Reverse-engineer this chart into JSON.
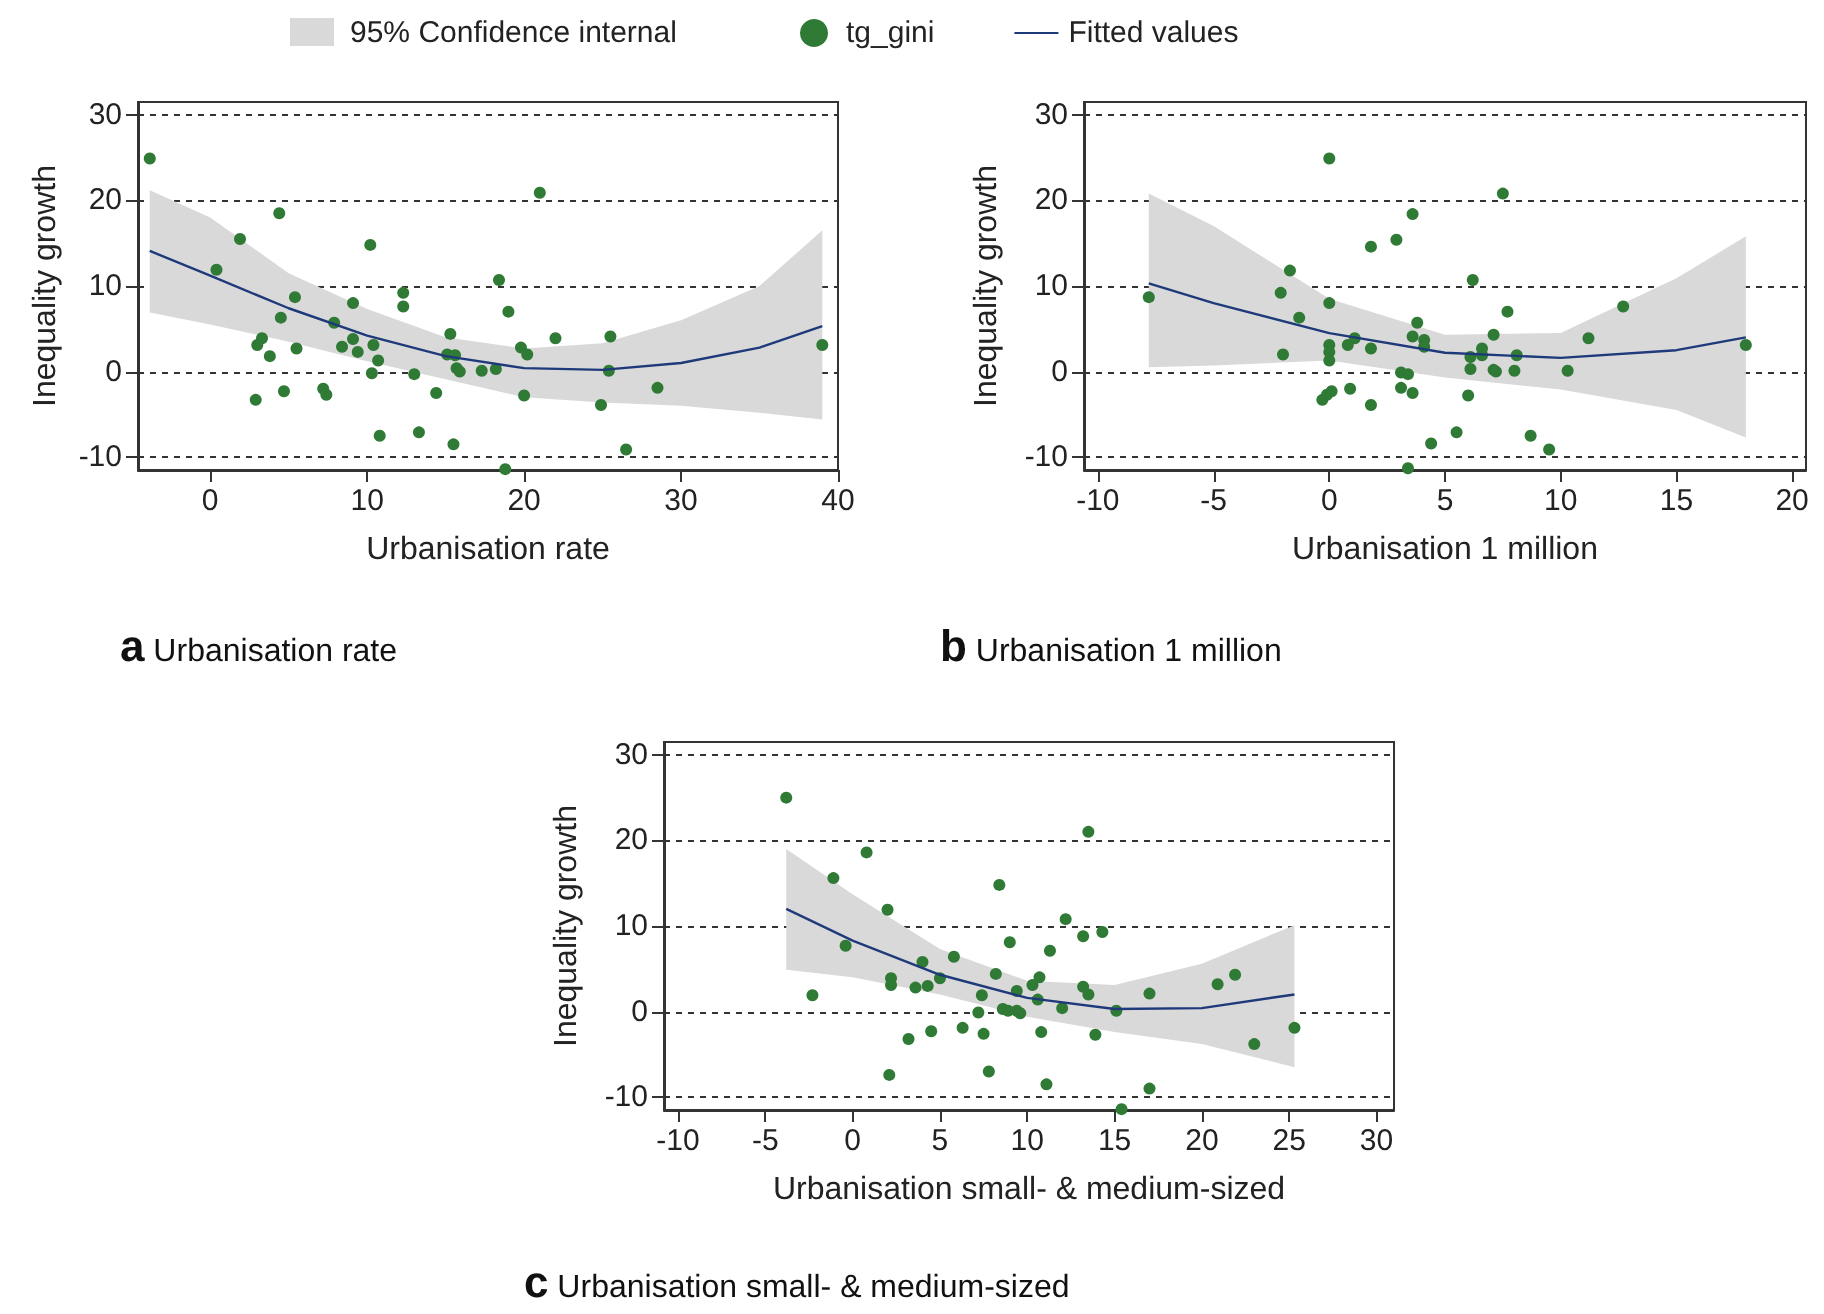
{
  "chart_data": [
    {
      "type": "scatter",
      "xlabel": "Urbanisation rate",
      "ylabel": "Inequality growth",
      "annotations": [
        "95% Confidence internal",
        "a Urbanisation rate"
      ],
      "xlim": [
        -4.6,
        40
      ],
      "ylim": [
        -11.5,
        31.5
      ],
      "xticks": [
        0,
        10,
        20,
        30,
        40
      ],
      "yticks": [
        -10,
        0,
        10,
        20,
        30
      ],
      "grid": "y",
      "legend": "top",
      "series": [
        {
          "type": "scatter",
          "name": "tg_gini",
          "color": "#2f7a35",
          "marker": "circle",
          "x": [
            -3.85,
            0.4,
            1.9,
            4.4,
            5.4,
            4.5,
            3.3,
            3.0,
            3.8,
            5.5,
            2.9,
            4.7,
            7.2,
            7.4,
            7.9,
            8.4,
            9.1,
            9.1,
            9.4,
            10.2,
            10.4,
            10.7,
            10.3,
            10.8,
            12.3,
            12.3,
            13.0,
            13.3,
            14.4,
            15.3,
            15.1,
            15.6,
            15.7,
            15.9,
            15.5,
            17.3,
            18.2,
            18.4,
            19.0,
            18.8,
            19.8,
            20.2,
            20.0,
            21.0,
            22.0,
            25.5,
            25.4,
            24.9,
            26.5,
            28.5,
            39.0
          ],
          "values": [
            24.9,
            11.9,
            15.5,
            18.5,
            8.7,
            6.3,
            3.9,
            3.1,
            1.8,
            2.7,
            -3.3,
            -2.3,
            -2.0,
            -2.7,
            5.7,
            2.9,
            8.0,
            3.8,
            2.3,
            14.8,
            3.1,
            1.3,
            -0.2,
            -7.5,
            9.2,
            7.6,
            -0.3,
            -7.1,
            -2.5,
            4.4,
            2.0,
            1.9,
            0.4,
            0,
            -8.5,
            0.1,
            0.3,
            10.7,
            7.0,
            -11.4,
            2.8,
            2.0,
            -2.8,
            20.9,
            3.9,
            4.1,
            0.1,
            -3.9,
            -9.1,
            -1.9,
            3.1
          ]
        },
        {
          "type": "line",
          "name": "Fitted values",
          "color": "#1f3a7a",
          "x": [
            -3.85,
            0,
            5,
            10,
            15,
            20,
            25,
            30,
            35,
            39
          ],
          "values": [
            14.1,
            11.2,
            7.4,
            4.2,
            1.8,
            0.4,
            0.2,
            1.0,
            2.8,
            5.3
          ],
          "lower": [
            6.9,
            5.5,
            3.5,
            1.2,
            -0.9,
            -3.0,
            -3.6,
            -4.0,
            -4.8,
            -5.6
          ],
          "upper": [
            21.2,
            18.0,
            11.5,
            7.3,
            4.0,
            2.7,
            3.3,
            6.0,
            10,
            16.5
          ]
        }
      ]
    },
    {
      "type": "scatter",
      "xlabel": "Urbanisation 1 million",
      "ylabel": "Inequality growth",
      "annotations": [
        "b Urbanisation 1 million"
      ],
      "xlim": [
        -10.6,
        20.6
      ],
      "ylim": [
        -11.5,
        31.5
      ],
      "xticks": [
        -10,
        -5,
        0,
        5,
        10,
        15,
        20
      ],
      "yticks": [
        -10,
        0,
        10,
        20,
        30
      ],
      "grid": "y",
      "series": [
        {
          "type": "scatter",
          "color": "#2f7a35",
          "marker": "circle",
          "x": [
            -7.8,
            -2.1,
            -1.7,
            -1.3,
            -2.0,
            0,
            0,
            0,
            0,
            0,
            -0.3,
            -0.1,
            0.1,
            0.8,
            1.1,
            0.9,
            1.8,
            1.8,
            1.8,
            2.9,
            3.6,
            3.8,
            3.6,
            4.1,
            4.1,
            3.1,
            3.4,
            3.1,
            3.6,
            3.4,
            4.4,
            5.5,
            6.0,
            6.1,
            6.1,
            6.2,
            6.6,
            6.6,
            7.1,
            7.1,
            7.2,
            7.5,
            7.7,
            8.0,
            8.1,
            8.7,
            9.5,
            10.3,
            11.2,
            12.7,
            18.0
          ],
          "values": [
            8.7,
            9.2,
            11.8,
            6.3,
            2.0,
            24.9,
            8.0,
            3.1,
            2.3,
            1.3,
            -3.3,
            -2.7,
            -2.3,
            3.1,
            3.9,
            -2.0,
            14.6,
            2.7,
            -3.9,
            15.4,
            18.4,
            5.7,
            4.1,
            3.7,
            2.9,
            -0.1,
            -0.3,
            -1.9,
            -2.5,
            -11.3,
            -8.4,
            -7.1,
            -2.8,
            1.7,
            0.3,
            10.7,
            2.7,
            1.9,
            4.3,
            0.2,
            0,
            20.8,
            7.0,
            0.1,
            1.9,
            -7.5,
            -9.1,
            0.1,
            3.9,
            7.6,
            3.1
          ]
        },
        {
          "type": "line",
          "color": "#1f3a7a",
          "x": [
            -7.8,
            -5,
            0,
            5,
            10,
            15,
            18
          ],
          "values": [
            10.3,
            8.0,
            4.5,
            2.2,
            1.6,
            2.5,
            4.0
          ],
          "lower": [
            0.5,
            0.7,
            1.3,
            -0.7,
            -2.1,
            -4.5,
            -7.7
          ],
          "upper": [
            20.8,
            17.0,
            8.5,
            4.3,
            4.5,
            10.9,
            15.8
          ]
        }
      ]
    },
    {
      "type": "scatter",
      "xlabel": "Urbanisation small- & medium-sized",
      "ylabel": "Inequality growth",
      "annotations": [
        "c Urbanisation small- & medium-sized"
      ],
      "xlim": [
        -10.8,
        31
      ],
      "ylim": [
        -11.5,
        31.5
      ],
      "xticks": [
        -10,
        -5,
        0,
        5,
        10,
        15,
        20,
        25,
        30
      ],
      "yticks": [
        -10,
        0,
        10,
        20,
        30
      ],
      "grid": "y",
      "series": [
        {
          "type": "scatter",
          "color": "#2f7a35",
          "marker": "circle",
          "x": [
            -3.8,
            -2.3,
            -1.1,
            -0.4,
            0.8,
            2.0,
            2.2,
            2.2,
            2.1,
            3.2,
            3.6,
            4.0,
            4.3,
            4.5,
            5.0,
            5.8,
            6.3,
            7.2,
            7.4,
            7.5,
            7.8,
            8.2,
            8.4,
            8.6,
            8.9,
            9.0,
            9.4,
            9.4,
            9.6,
            10.3,
            10.6,
            10.7,
            10.8,
            11.1,
            11.3,
            12.0,
            12.2,
            13.2,
            13.2,
            13.5,
            13.5,
            13.9,
            14.3,
            15.1,
            15.4,
            17.0,
            17.0,
            20.9,
            21.9,
            23.0,
            25.3
          ],
          "values": [
            25.0,
            1.9,
            15.6,
            7.7,
            18.6,
            11.9,
            3.9,
            3.1,
            -7.4,
            -3.2,
            2.8,
            5.8,
            3.0,
            -2.3,
            3.9,
            6.4,
            -1.9,
            -0.1,
            1.9,
            -2.6,
            -7.0,
            4.4,
            14.8,
            0.3,
            0.1,
            8.1,
            2.4,
            0.1,
            -0.2,
            3.1,
            1.4,
            4.0,
            -2.4,
            -8.5,
            7.1,
            0.4,
            10.8,
            8.8,
            2.9,
            2.0,
            21.0,
            -2.7,
            9.3,
            0.1,
            -11.4,
            2.1,
            -9.0,
            3.2,
            4.3,
            -3.8,
            -1.9
          ]
        },
        {
          "type": "line",
          "color": "#1f3a7a",
          "x": [
            -3.8,
            0,
            5,
            10,
            15,
            20,
            25.3
          ],
          "values": [
            12.0,
            8.3,
            4.3,
            1.6,
            0.3,
            0.4,
            2.0
          ],
          "lower": [
            4.9,
            4.0,
            2.0,
            -0.6,
            -2.4,
            -3.8,
            -6.5
          ],
          "upper": [
            19.0,
            13.7,
            7.3,
            3.6,
            3.1,
            5.6,
            10.1
          ]
        }
      ]
    }
  ]
}
